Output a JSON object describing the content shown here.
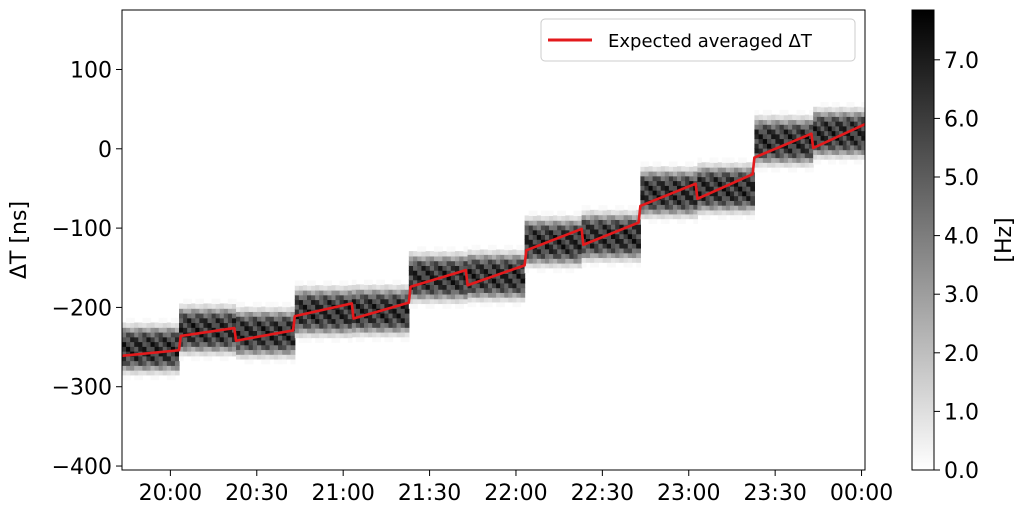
{
  "chart_data": {
    "type": "heatmap",
    "title": "",
    "xlabel": "",
    "ylabel": "ΔT [ns]",
    "x_ticks": [
      {
        "value": 20.0,
        "label": "20:00"
      },
      {
        "value": 20.5,
        "label": "20:30"
      },
      {
        "value": 21.0,
        "label": "21:00"
      },
      {
        "value": 21.5,
        "label": "21:30"
      },
      {
        "value": 22.0,
        "label": "22:00"
      },
      {
        "value": 22.5,
        "label": "22:30"
      },
      {
        "value": 23.0,
        "label": "23:00"
      },
      {
        "value": 23.5,
        "label": "23:30"
      },
      {
        "value": 24.0,
        "label": "00:00"
      }
    ],
    "y_ticks": [
      {
        "value": 100,
        "label": "100"
      },
      {
        "value": 0,
        "label": "0"
      },
      {
        "value": -100,
        "label": "−100"
      },
      {
        "value": -200,
        "label": "−200"
      },
      {
        "value": -300,
        "label": "−300"
      },
      {
        "value": -400,
        "label": "−400"
      }
    ],
    "xlim": [
      19.72,
      24.02
    ],
    "ylim": [
      -405,
      175
    ],
    "heatmap_blocks": [
      {
        "x_start": 19.72,
        "x_end": 20.05,
        "center": -252,
        "peak": 7.6
      },
      {
        "x_start": 20.05,
        "x_end": 20.38,
        "center": -228,
        "peak": 7.6
      },
      {
        "x_start": 20.38,
        "x_end": 20.72,
        "center": -232,
        "peak": 7.6
      },
      {
        "x_start": 20.72,
        "x_end": 21.05,
        "center": -205,
        "peak": 7.6
      },
      {
        "x_start": 21.05,
        "x_end": 21.38,
        "center": -204,
        "peak": 7.6
      },
      {
        "x_start": 21.38,
        "x_end": 21.72,
        "center": -162,
        "peak": 7.6
      },
      {
        "x_start": 21.72,
        "x_end": 22.05,
        "center": -160,
        "peak": 7.6
      },
      {
        "x_start": 22.05,
        "x_end": 22.38,
        "center": -117,
        "peak": 7.6
      },
      {
        "x_start": 22.38,
        "x_end": 22.72,
        "center": -110,
        "peak": 7.6
      },
      {
        "x_start": 22.72,
        "x_end": 23.05,
        "center": -55,
        "peak": 7.6
      },
      {
        "x_start": 23.05,
        "x_end": 23.38,
        "center": -50,
        "peak": 7.6
      },
      {
        "x_start": 23.38,
        "x_end": 23.72,
        "center": 10,
        "peak": 7.6
      },
      {
        "x_start": 23.72,
        "x_end": 24.02,
        "center": 20,
        "peak": 7.6
      }
    ],
    "series": [
      {
        "name": "Expected averaged ΔT",
        "color": "#e31a1c",
        "points": [
          [
            19.72,
            -261
          ],
          [
            20.05,
            -254
          ],
          [
            20.06,
            -236
          ],
          [
            20.37,
            -226
          ],
          [
            20.38,
            -242
          ],
          [
            20.71,
            -229
          ],
          [
            20.72,
            -211
          ],
          [
            21.05,
            -195
          ],
          [
            21.06,
            -214
          ],
          [
            21.38,
            -194
          ],
          [
            21.39,
            -174
          ],
          [
            21.71,
            -153
          ],
          [
            21.72,
            -172
          ],
          [
            22.05,
            -147
          ],
          [
            22.06,
            -128
          ],
          [
            22.38,
            -101
          ],
          [
            22.39,
            -121
          ],
          [
            22.71,
            -93
          ],
          [
            22.72,
            -72
          ],
          [
            23.04,
            -44
          ],
          [
            23.05,
            -63
          ],
          [
            23.37,
            -32
          ],
          [
            23.38,
            -11
          ],
          [
            23.71,
            19
          ],
          [
            23.72,
            1
          ],
          [
            24.02,
            31
          ]
        ]
      }
    ],
    "colorbar": {
      "label": "[Hz]",
      "min": 0.0,
      "max": 7.85,
      "ticks": [
        {
          "value": 0.0,
          "label": "0.0"
        },
        {
          "value": 1.0,
          "label": "1.0"
        },
        {
          "value": 2.0,
          "label": "2.0"
        },
        {
          "value": 3.0,
          "label": "3.0"
        },
        {
          "value": 4.0,
          "label": "4.0"
        },
        {
          "value": 5.0,
          "label": "5.0"
        },
        {
          "value": 6.0,
          "label": "6.0"
        },
        {
          "value": 7.0,
          "label": "7.0"
        }
      ],
      "colormap": "white-to-black"
    },
    "legend": {
      "position": "top-right",
      "entries": [
        "Expected averaged ΔT"
      ]
    },
    "grid": false
  }
}
